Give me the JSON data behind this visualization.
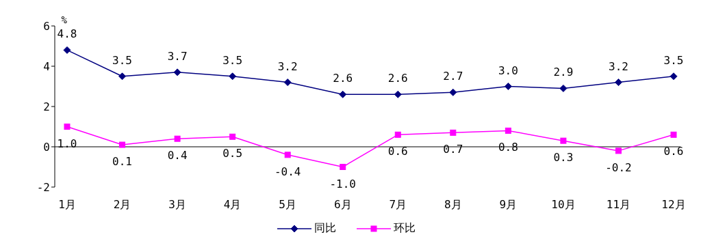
{
  "chart_data": {
    "type": "line",
    "ylabel": "%",
    "categories": [
      "1月",
      "2月",
      "3月",
      "4月",
      "5月",
      "6月",
      "7月",
      "8月",
      "9月",
      "10月",
      "11月",
      "12月"
    ],
    "series": [
      {
        "name": "同比",
        "color": "#000080",
        "marker": "diamond",
        "values": [
          4.8,
          3.5,
          3.7,
          3.5,
          3.2,
          2.6,
          2.6,
          2.7,
          3.0,
          2.9,
          3.2,
          3.5
        ],
        "value_labels": [
          "4.8",
          "3.5",
          "3.7",
          "3.5",
          "3.2",
          "2.6",
          "2.6",
          "2.7",
          "3.0",
          "2.9",
          "3.2",
          "3.5"
        ]
      },
      {
        "name": "环比",
        "color": "#ff00ff",
        "marker": "square",
        "values": [
          1.0,
          0.1,
          0.4,
          0.5,
          -0.4,
          -1.0,
          0.6,
          0.7,
          0.8,
          0.3,
          -0.2,
          0.6
        ],
        "value_labels": [
          "1.0",
          "0.1",
          "0.4",
          "0.5",
          "-0.4",
          "-1.0",
          "0.6",
          "0.7",
          "0.8",
          "0.3",
          "-0.2",
          "0.6"
        ]
      }
    ],
    "ylim": [
      -2,
      6
    ],
    "yticks": [
      -2,
      0,
      2,
      4,
      6
    ],
    "ref_lines": [
      {
        "axis": "y",
        "value": 0,
        "color": "#000000"
      }
    ],
    "legend": "bottom",
    "line_style": "solid"
  }
}
